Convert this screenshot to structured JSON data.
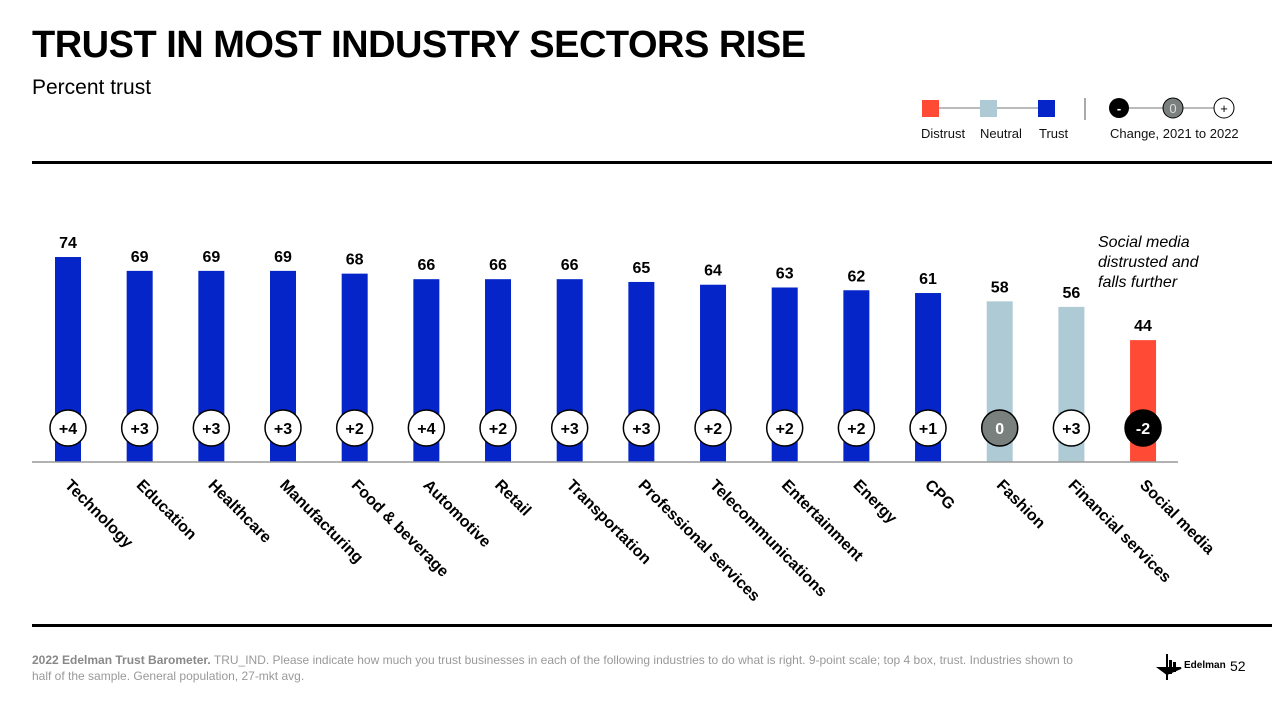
{
  "header": {
    "title": "TRUST IN MOST INDUSTRY SECTORS RISE",
    "subtitle": "Percent trust"
  },
  "legend": {
    "distrust": "Distrust",
    "neutral": "Neutral",
    "trust": "Trust",
    "change_label": "Change, 2021 to 2022",
    "change_symbols": [
      "-",
      "0",
      "+"
    ]
  },
  "colors": {
    "trust": "#0625C8",
    "neutral": "#AECAD4",
    "distrust": "#FF4A36",
    "zero_circle": "#7A807E",
    "neg_circle": "#000000"
  },
  "annotation": "Social media distrusted and falls further",
  "footer": {
    "bold": "2022 Edelman Trust Barometer.",
    "text": " TRU_IND. Please indicate how much you trust businesses in each of the following industries to do what is right. 9-point scale; top 4 box, trust. Industries shown to half of the sample. General population, 27-mkt avg."
  },
  "brand": "Edelman",
  "page_number": "52",
  "chart_data": {
    "type": "bar",
    "title": "TRUST IN MOST INDUSTRY SECTORS RISE",
    "subtitle": "Percent trust",
    "ylim": [
      0,
      100
    ],
    "grid": false,
    "categories": [
      "Technology",
      "Education",
      "Healthcare",
      "Manufacturing",
      "Food & beverage",
      "Automotive",
      "Retail",
      "Transportation",
      "Professional services",
      "Telecommunications",
      "Entertainment",
      "Energy",
      "CPG",
      "Fashion",
      "Financial services",
      "Social media"
    ],
    "values": [
      74,
      69,
      69,
      69,
      68,
      66,
      66,
      66,
      65,
      64,
      63,
      62,
      61,
      58,
      56,
      44
    ],
    "trust_level": [
      "trust",
      "trust",
      "trust",
      "trust",
      "trust",
      "trust",
      "trust",
      "trust",
      "trust",
      "trust",
      "trust",
      "trust",
      "trust",
      "neutral",
      "neutral",
      "distrust"
    ],
    "change": [
      "+4",
      "+3",
      "+3",
      "+3",
      "+2",
      "+4",
      "+2",
      "+3",
      "+3",
      "+2",
      "+2",
      "+2",
      "+1",
      "0",
      "+3",
      "-2"
    ]
  }
}
